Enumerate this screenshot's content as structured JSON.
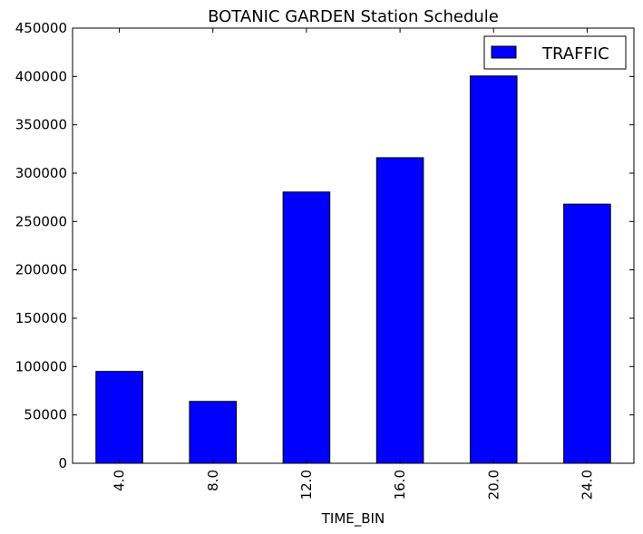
{
  "chart_data": {
    "type": "bar",
    "title": "BOTANIC GARDEN Station Schedule",
    "xlabel": "TIME_BIN",
    "ylabel": "",
    "categories": [
      "4.0",
      "8.0",
      "12.0",
      "16.0",
      "20.0",
      "24.0"
    ],
    "series": [
      {
        "name": "TRAFFIC",
        "values": [
          95000,
          64000,
          280500,
          316000,
          400500,
          268000
        ],
        "color": "#0000ff"
      }
    ],
    "ylim": [
      0,
      450000
    ],
    "yticks": [
      "0",
      "50000",
      "100000",
      "150000",
      "200000",
      "250000",
      "300000",
      "350000",
      "400000",
      "450000"
    ],
    "grid": false,
    "legend": "top-right"
  }
}
